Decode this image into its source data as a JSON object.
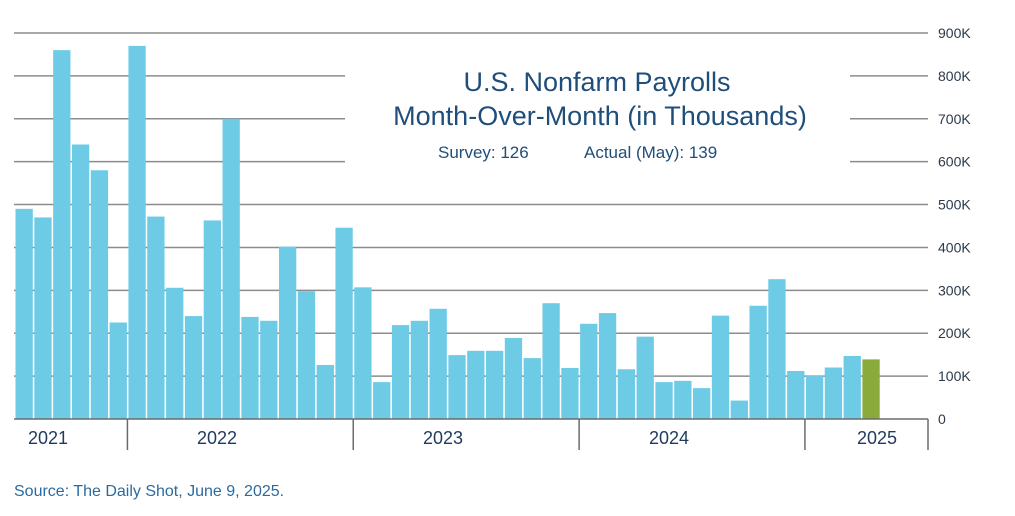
{
  "colors": {
    "bar": "#6ecbe6",
    "bar_highlight": "#8aab3c",
    "grid": "#8c8c8c",
    "axis": "#6b6b6b"
  },
  "chart_data": {
    "type": "bar",
    "title": "U.S. Nonfarm Payrolls",
    "subtitle": "Month-Over-Month (in Thousands)",
    "survey_label": "Survey: 126",
    "actual_label": "Actual (May): 139",
    "ylim": [
      0,
      900
    ],
    "y_ticks": [
      0,
      100,
      200,
      300,
      400,
      500,
      600,
      700,
      800,
      900
    ],
    "y_tick_labels": [
      "0",
      "100K",
      "200K",
      "300K",
      "400K",
      "500K",
      "600K",
      "700K",
      "800K",
      "900K"
    ],
    "grid": true,
    "year_labels": [
      "2021",
      "2022",
      "2023",
      "2024",
      "2025"
    ],
    "highlight_last": true,
    "values": [
      490,
      470,
      860,
      640,
      580,
      225,
      870,
      472,
      306,
      240,
      463,
      700,
      238,
      229,
      402,
      298,
      126,
      446,
      307,
      86,
      219,
      229,
      257,
      149,
      159,
      159,
      189,
      142,
      270,
      119,
      222,
      247,
      116,
      192,
      86,
      89,
      72,
      241,
      43,
      264,
      326,
      112,
      102,
      120,
      147,
      139
    ]
  },
  "source": "Source: The Daily Shot, June 9, 2025."
}
